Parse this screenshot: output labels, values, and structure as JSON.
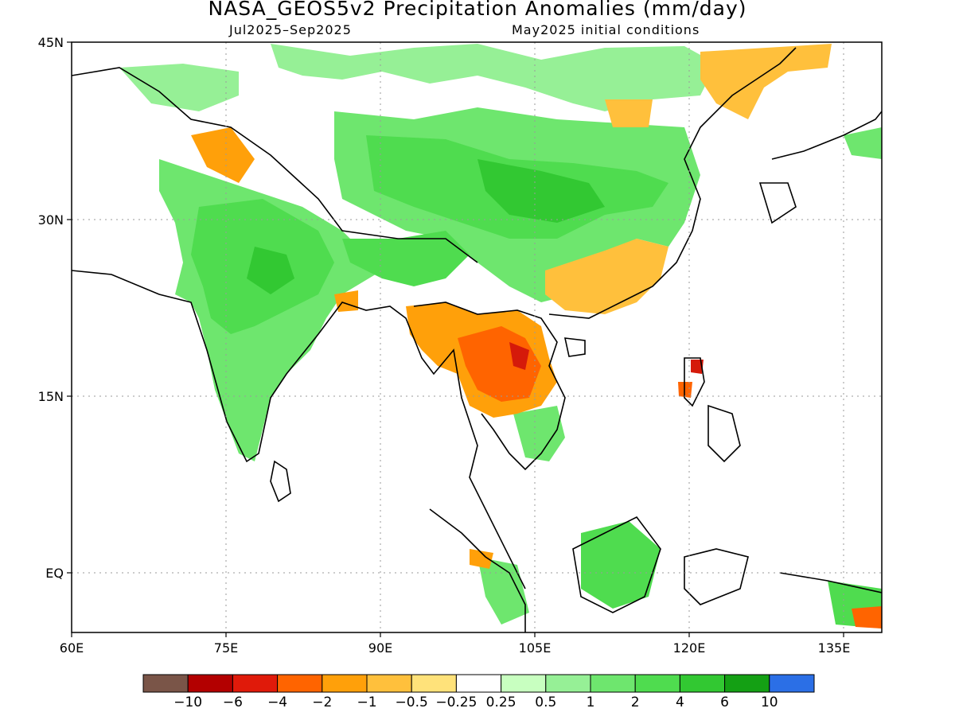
{
  "map": {
    "title": "NASA_GEOS5v2 Precipitation Anomalies (mm/day)",
    "period": "Jul2025–Sep2025",
    "init": "May2025 initial conditions",
    "lat_labels": [
      "45N",
      "30N",
      "15N",
      "EQ"
    ],
    "lon_labels": [
      "60E",
      "75E",
      "90E",
      "105E",
      "120E",
      "135E"
    ],
    "region": {
      "lon_range": [
        60,
        140
      ],
      "lat_range": [
        -5,
        45
      ]
    },
    "colors": {
      "land_border": "#000000",
      "wet": "#4fdc4f",
      "dry": "#ff8c1a",
      "very_dry": "#d51a0a"
    }
  },
  "colorbar": {
    "colors": [
      "#7a5548",
      "#b30000",
      "#e01a0a",
      "#ff6400",
      "#ffa00a",
      "#ffc03c",
      "#ffe27a",
      "#ffffff",
      "#c8ffc0",
      "#96f096",
      "#6ee66e",
      "#4fdc4f",
      "#32c832",
      "#14a014",
      "#2b6fe6"
    ],
    "tick_labels": [
      "−10",
      "−6",
      "−4",
      "−2",
      "−1",
      "−0.5",
      "−0.25",
      "0.25",
      "0.5",
      "1",
      "2",
      "4",
      "6",
      "10"
    ]
  }
}
